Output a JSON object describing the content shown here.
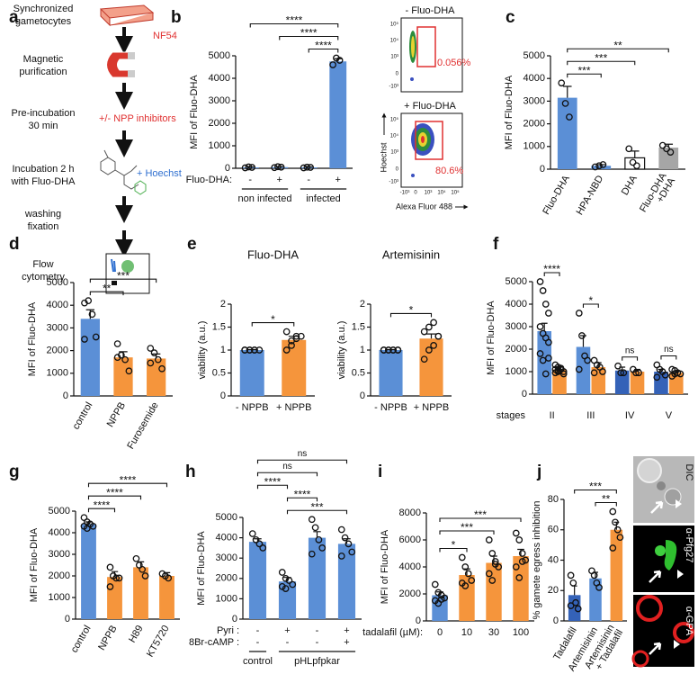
{
  "figure": {
    "panel": "a",
    "steps": [
      [
        "Synchronized",
        "gametocytes"
      ],
      [
        "Magnetic",
        "purification"
      ],
      [
        "Pre-incubation",
        "30 min"
      ],
      [
        "Incubation 2 h",
        "with Fluo-DHA"
      ],
      [
        "washing",
        "fixation"
      ],
      [
        "Flow",
        "cytometry"
      ]
    ],
    "strain": "NF54",
    "inhibitors": "+/- NPP inhibitors",
    "stain": "+ Hoechst",
    "flow": {
      "minus_title": "- Fluo-DHA",
      "minus_gate": "0.056%",
      "plus_title": "+ Fluo-DHA",
      "plus_gate": "80.6%",
      "ylabel": "Hoechst",
      "xlabel": "Alexa Fluor 488",
      "yticks": [
        "10⁵",
        "10⁴",
        "10³",
        "0",
        "-10³"
      ],
      "xticks": [
        "-10³",
        "0",
        "10³",
        "10⁴",
        "10⁵"
      ]
    },
    "images": [
      "DIC",
      "α-Pfg27",
      "α-GPA"
    ]
  },
  "chart_data": [
    {
      "type": "bar",
      "panel": "b",
      "ylabel": "MFI of Fluo-DHA",
      "ylim": [
        0,
        5000
      ],
      "yticks": [
        0,
        1000,
        2000,
        3000,
        4000,
        5000
      ],
      "rows": [
        {
          "label": "Fluo-DHA:",
          "values": [
            "-",
            "+",
            "-",
            "+"
          ]
        }
      ],
      "groups": [
        {
          "label": "non infected",
          "from": 0,
          "to": 1
        },
        {
          "label": "infected",
          "from": 2,
          "to": 3
        }
      ],
      "series": [
        {
          "colors": [
            "#5b8fd6",
            "#5b8fd6",
            "#5b8fd6",
            "#5b8fd6"
          ],
          "values": [
            40,
            50,
            40,
            4750
          ],
          "errors": [
            20,
            20,
            20,
            120
          ],
          "points": [
            [
              20,
              60,
              40
            ],
            [
              30,
              70,
              50
            ],
            [
              20,
              50,
              40
            ],
            [
              4600,
              4900,
              4800
            ]
          ]
        }
      ],
      "brackets": [
        {
          "from": 2,
          "to": 3,
          "label": "****"
        },
        {
          "from": 1,
          "to": 3,
          "label": "****"
        },
        {
          "from": 0,
          "to": 3,
          "label": "****"
        }
      ]
    },
    {
      "type": "bar",
      "panel": "c",
      "ylabel": "MFI of Fluo-DHA",
      "ylim": [
        0,
        5000
      ],
      "yticks": [
        0,
        1000,
        2000,
        3000,
        4000,
        5000
      ],
      "categories": [
        "Fluo-DHA",
        "HPA-NBD",
        "DHA",
        [
          "Fluo-DHA",
          "+DHA"
        ]
      ],
      "series": [
        {
          "colors": [
            "#5b8fd6",
            "#5b8fd6",
            "#ffffff",
            "#a6a6a6"
          ],
          "values": [
            3150,
            150,
            500,
            950
          ],
          "errors": [
            500,
            50,
            300,
            150
          ],
          "points": [
            [
              3800,
              2900,
              2300
            ],
            [
              100,
              150,
              200
            ],
            [
              900,
              300,
              150
            ],
            [
              1050,
              900,
              750
            ]
          ]
        }
      ],
      "brackets": [
        {
          "from": 0,
          "to": 1,
          "label": "***"
        },
        {
          "from": 0,
          "to": 2,
          "label": "***"
        },
        {
          "from": 0,
          "to": 3,
          "label": "**"
        }
      ]
    },
    {
      "type": "bar",
      "panel": "d",
      "ylabel": "MFI of Fluo-DHA",
      "ylim": [
        0,
        5000
      ],
      "yticks": [
        0,
        1000,
        2000,
        3000,
        4000,
        5000
      ],
      "categories": [
        "control",
        "NPPB",
        "Furosemide"
      ],
      "series": [
        {
          "colors": [
            "#5b8fd6",
            "#f5953c",
            "#f5953c"
          ],
          "values": [
            3400,
            1700,
            1650
          ],
          "errors": [
            400,
            250,
            200
          ],
          "points": [
            [
              4100,
              4200,
              3600,
              2600,
              2500
            ],
            [
              2300,
              1800,
              1600,
              1100,
              1700
            ],
            [
              2100,
              1900,
              1600,
              1200,
              1450
            ]
          ]
        }
      ],
      "brackets": [
        {
          "from": 0,
          "to": 1,
          "label": "**"
        },
        {
          "from": 0,
          "to": 2,
          "label": "***"
        }
      ]
    },
    {
      "type": "bar",
      "panel": "e",
      "title": "Fluo-DHA",
      "ylabel": "viability (a.u.)",
      "ylim": [
        0,
        2
      ],
      "yticks": [
        0,
        0.5,
        1,
        1.5,
        2
      ],
      "categories": [
        "- NPPB",
        "+ NPPB"
      ],
      "series": [
        {
          "colors": [
            "#5b8fd6",
            "#f5953c"
          ],
          "values": [
            1,
            1.22
          ],
          "errors": [
            0.01,
            0.08
          ],
          "points": [
            [
              1,
              1,
              1,
              1,
              1,
              1,
              1
            ],
            [
              1.0,
              1.1,
              1.25,
              1.3,
              1.4,
              1.2,
              1.3
            ]
          ]
        }
      ],
      "brackets": [
        {
          "from": 0,
          "to": 1,
          "label": "*"
        }
      ]
    },
    {
      "type": "bar",
      "title": "Artemisinin",
      "ylabel": "viability (a.u.)",
      "ylim": [
        0,
        2
      ],
      "yticks": [
        0,
        0.5,
        1,
        1.5,
        2
      ],
      "categories": [
        "- NPPB",
        "+ NPPB"
      ],
      "series": [
        {
          "colors": [
            "#5b8fd6",
            "#f5953c"
          ],
          "values": [
            1,
            1.25
          ],
          "errors": [
            0.01,
            0.1
          ],
          "points": [
            [
              1,
              1,
              1,
              1,
              1,
              1,
              1,
              1
            ],
            [
              0.8,
              1.0,
              1.1,
              1.3,
              1.4,
              1.5,
              1.6,
              1.3
            ]
          ]
        }
      ],
      "brackets": [
        {
          "from": 0,
          "to": 1,
          "label": "*"
        }
      ]
    },
    {
      "type": "bar",
      "panel": "f",
      "ylabel": "MFI of Fluo-DHA",
      "xlabel": "stages",
      "ylim": [
        0,
        5000
      ],
      "yticks": [
        0,
        1000,
        2000,
        3000,
        4000,
        5000
      ],
      "categories": [
        "II",
        "III",
        "IV",
        "V"
      ],
      "series": [
        {
          "colors": [
            "#5b8fd6",
            "#5b8fd6",
            "#3462b8",
            "#3462b8"
          ],
          "values": [
            2800,
            2100,
            1050,
            1000
          ],
          "errors": [
            350,
            500,
            150,
            100
          ],
          "points": [
            [
              5000,
              4600,
              4000,
              3600,
              3000,
              2700,
              2500,
              2300,
              1800,
              1500,
              900,
              1600
            ],
            [
              3600,
              2600,
              1700,
              1500,
              1100
            ],
            [
              1250,
              950,
              950
            ],
            [
              1300,
              1100,
              1000,
              850,
              750
            ]
          ]
        },
        {
          "color": "#f5953c",
          "values": [
            1100,
            1200,
            1000,
            950
          ],
          "errors": [
            100,
            200,
            100,
            80
          ],
          "points": [
            [
              1300,
              1200,
              1100,
              1000,
              950,
              1050,
              1150,
              900,
              1100,
              1000
            ],
            [
              1500,
              1300,
              1200,
              1000,
              950
            ],
            [
              1100,
              950,
              950
            ],
            [
              1100,
              1050,
              950,
              900,
              800,
              900
            ]
          ]
        }
      ],
      "brackets": [
        {
          "from": 0,
          "to": 1,
          "label": "****"
        },
        {
          "from": 2,
          "to": 3,
          "label": "*"
        },
        {
          "from": 4,
          "to": 5,
          "label": "ns"
        },
        {
          "from": 6,
          "to": 7,
          "label": "ns"
        }
      ]
    },
    {
      "type": "bar",
      "panel": "g",
      "ylabel": "MFI of Fluo-DHA",
      "ylim": [
        0,
        5000
      ],
      "yticks": [
        0,
        1000,
        2000,
        3000,
        4000,
        5000
      ],
      "categories": [
        "control",
        "NPPB",
        "H89",
        "KT5720"
      ],
      "series": [
        {
          "colors": [
            "#5b8fd6",
            "#f5953c",
            "#f5953c",
            "#f5953c"
          ],
          "values": [
            4400,
            1950,
            2400,
            2000
          ],
          "errors": [
            100,
            250,
            250,
            150
          ],
          "points": [
            [
              4700,
              4500,
              4400,
              4300,
              4300,
              4200
            ],
            [
              2400,
              2000,
              1900,
              1900,
              1500
            ],
            [
              2800,
              2500,
              2300,
              2000
            ],
            [
              2100,
              2000,
              1900
            ]
          ]
        }
      ],
      "brackets": [
        {
          "from": 0,
          "to": 1,
          "label": "****"
        },
        {
          "from": 0,
          "to": 2,
          "label": "****"
        },
        {
          "from": 0,
          "to": 3,
          "label": "****"
        }
      ]
    },
    {
      "type": "bar",
      "panel": "h",
      "ylabel": "MFI of Fluo-DHA",
      "ylim": [
        0,
        5000
      ],
      "yticks": [
        0,
        1000,
        2000,
        3000,
        4000,
        5000
      ],
      "rows": [
        {
          "label": "Pyri :",
          "values": [
            "-",
            "+",
            "-",
            "+"
          ]
        },
        {
          "label": "8Br-cAMP :",
          "values": [
            "-",
            "-",
            "-",
            "+"
          ]
        }
      ],
      "groups": [
        {
          "label": "control",
          "from": 0,
          "to": 0
        },
        {
          "label": "pHLpfpkar",
          "from": 1,
          "to": 3
        }
      ],
      "series": [
        {
          "colors": [
            "#5b8fd6",
            "#5b8fd6",
            "#5b8fd6",
            "#5b8fd6"
          ],
          "values": [
            3800,
            1850,
            4000,
            3700
          ],
          "errors": [
            150,
            200,
            300,
            250
          ],
          "points": [
            [
              4200,
              3900,
              3700,
              3500
            ],
            [
              2300,
              2000,
              1900,
              1700,
              1600,
              1500
            ],
            [
              4900,
              4500,
              3900,
              3500,
              3200
            ],
            [
              4400,
              4000,
              3700,
              3300,
              3100
            ]
          ]
        }
      ],
      "brackets": [
        {
          "from": 1,
          "to": 3,
          "label": "***"
        },
        {
          "from": 1,
          "to": 2,
          "label": "****"
        },
        {
          "from": 0,
          "to": 1,
          "label": "****"
        },
        {
          "from": 0,
          "to": 2,
          "label": "ns"
        },
        {
          "from": 0,
          "to": 3,
          "label": "ns"
        }
      ]
    },
    {
      "type": "bar",
      "panel": "i",
      "ylabel": "MFI of Fluo-DHA",
      "ylim": [
        0,
        8000
      ],
      "yticks": [
        0,
        2000,
        4000,
        6000,
        8000
      ],
      "rows": [
        {
          "label": "tadalafil (µM):",
          "values": [
            0,
            10,
            30,
            100
          ]
        }
      ],
      "series": [
        {
          "colors": [
            "#5b8fd6",
            "#f5953c",
            "#f5953c",
            "#f5953c"
          ],
          "values": [
            1900,
            3400,
            4300,
            4800
          ],
          "errors": [
            250,
            450,
            500,
            500
          ],
          "points": [
            [
              2700,
              2100,
              1900,
              1700,
              1500,
              1300,
              1600
            ],
            [
              4700,
              4000,
              3500,
              3000,
              2800,
              2600
            ],
            [
              6000,
              5000,
              4400,
              4000,
              3500,
              3000,
              4200
            ],
            [
              6500,
              6000,
              5000,
              4500,
              4000,
              3200,
              4400
            ]
          ]
        }
      ],
      "brackets": [
        {
          "from": 0,
          "to": 1,
          "label": "*"
        },
        {
          "from": 0,
          "to": 2,
          "label": "***"
        },
        {
          "from": 0,
          "to": 3,
          "label": "***"
        }
      ]
    },
    {
      "type": "bar",
      "panel": "j",
      "ylabel": "% gamete egress inhibition",
      "ylim": [
        0,
        80
      ],
      "yticks": [
        0,
        20,
        40,
        60,
        80
      ],
      "categories": [
        "Tadalafil",
        "Artemisinin",
        [
          "Artemisinin",
          "+ Tadalafil"
        ]
      ],
      "series": [
        {
          "colors": [
            "#3462b8",
            "#5b8fd6",
            "#f5953c"
          ],
          "values": [
            17,
            28,
            60
          ],
          "errors": [
            6,
            4,
            5
          ],
          "points": [
            [
              30,
              25,
              12,
              8,
              10
            ],
            [
              33,
              30,
              25,
              22
            ],
            [
              72,
              65,
              60,
              55,
              48
            ]
          ]
        }
      ],
      "brackets": [
        {
          "from": 1,
          "to": 2,
          "label": "**"
        },
        {
          "from": 0,
          "to": 2,
          "label": "***"
        }
      ]
    }
  ]
}
